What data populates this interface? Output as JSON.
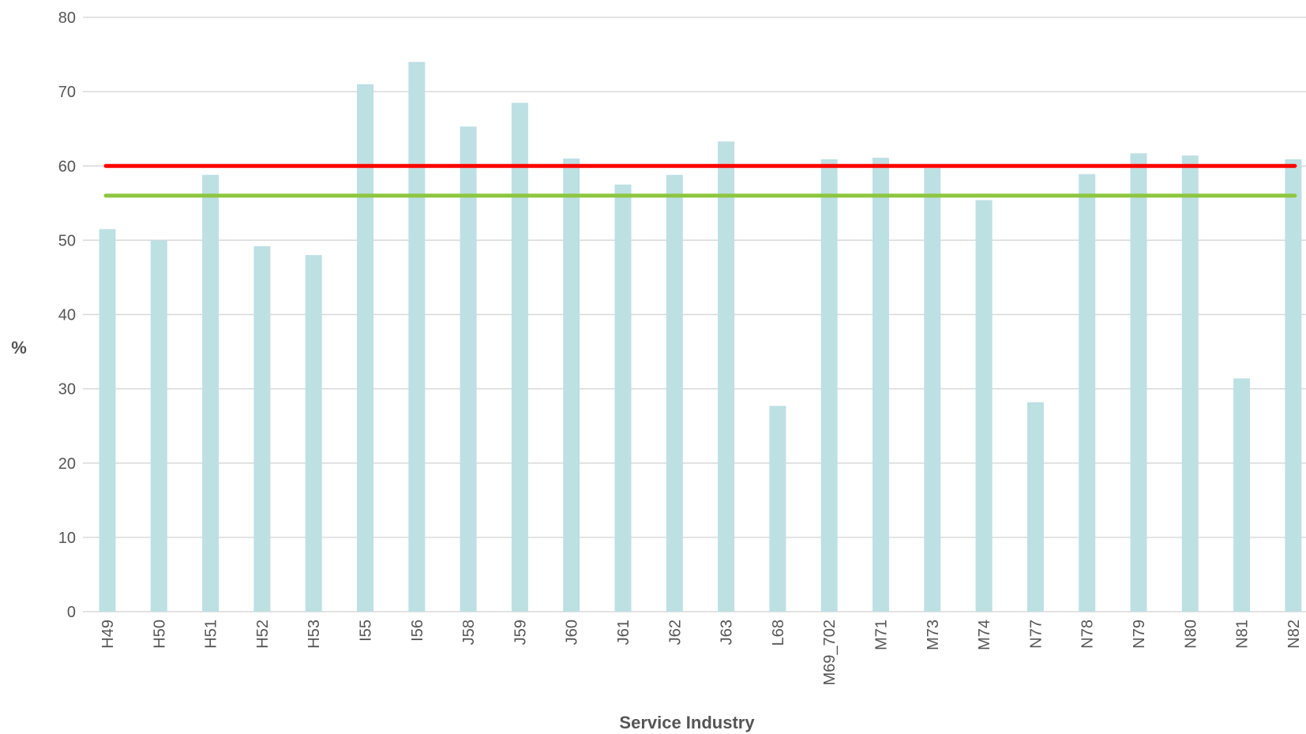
{
  "chart_data": {
    "type": "bar",
    "title": "",
    "xlabel": "Service Industry",
    "ylabel": "%",
    "ylim": [
      0,
      80
    ],
    "yticks": [
      0,
      10,
      20,
      30,
      40,
      50,
      60,
      70,
      80
    ],
    "grid": true,
    "categories": [
      "H49",
      "H50",
      "H51",
      "H52",
      "H53",
      "I55",
      "I56",
      "J58",
      "J59",
      "J60",
      "J61",
      "J62",
      "J63",
      "L68",
      "M69_702",
      "M71",
      "M73",
      "M74",
      "N77",
      "N78",
      "N79",
      "N80",
      "N81",
      "N82"
    ],
    "series": [
      {
        "values": [
          51.5,
          50.0,
          58.8,
          49.2,
          48.0,
          71.0,
          74.0,
          65.3,
          68.5,
          61.0,
          57.5,
          58.8,
          63.3,
          27.7,
          60.9,
          61.1,
          59.7,
          55.4,
          28.2,
          58.9,
          61.7,
          61.4,
          31.4,
          60.9
        ]
      }
    ],
    "reference_lines": [
      {
        "value": 60,
        "color": "#ff0000"
      },
      {
        "value": 56,
        "color": "#8dc63f"
      }
    ],
    "colors": {
      "bar": "#bde0e3",
      "grid": "#d9d9d9",
      "text": "#555555"
    }
  }
}
